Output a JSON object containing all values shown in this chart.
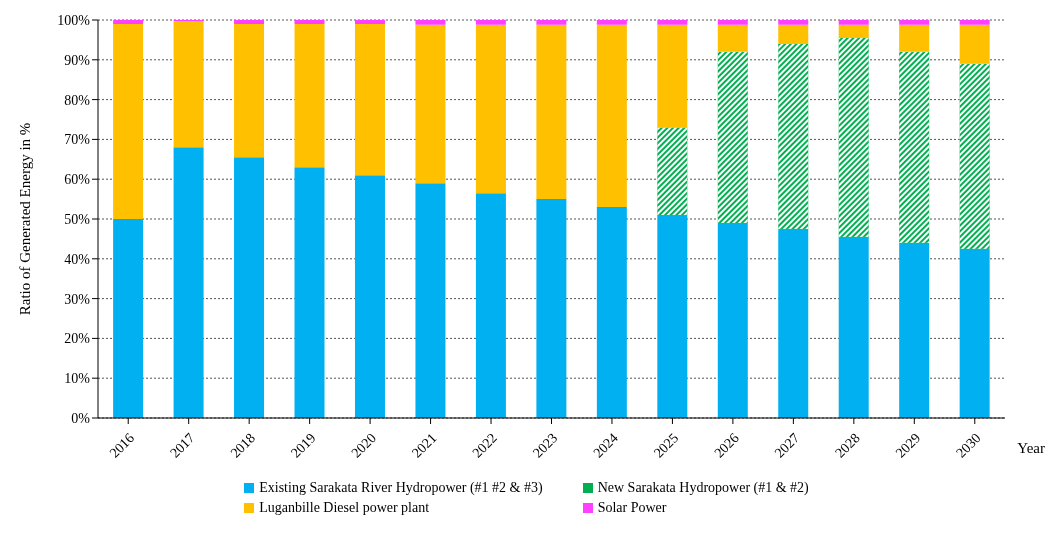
{
  "chart_data": {
    "type": "bar",
    "stacked": true,
    "xlabel": "Year",
    "ylabel": "Ratio of Generated Energy in %",
    "categories": [
      "2016",
      "2017",
      "2018",
      "2019",
      "2020",
      "2021",
      "2022",
      "2023",
      "2024",
      "2025",
      "2026",
      "2027",
      "2028",
      "2029",
      "2030"
    ],
    "series": [
      {
        "name": "Existing Sarakata River Hydropower (#1 #2 & #3)",
        "color": "#00b0f0",
        "values": [
          50,
          68,
          65.5,
          63,
          61,
          59,
          56.5,
          55,
          53,
          51,
          49,
          47.5,
          45.5,
          44,
          42.5
        ]
      },
      {
        "name": "New Sarakata Hydropower (#1 & #2)",
        "color": "#00b050",
        "values": [
          0,
          0,
          0,
          0,
          0,
          0,
          0,
          0,
          0,
          22,
          43,
          46.5,
          50,
          48,
          46.5
        ]
      },
      {
        "name": "Luganbille Diesel power plant",
        "color": "#ffc000",
        "values": [
          49,
          31.7,
          33.5,
          36,
          38,
          39.8,
          42.3,
          43.8,
          45.8,
          25.8,
          6.8,
          4.8,
          3.3,
          6.8,
          9.8
        ]
      },
      {
        "name": "Solar Power",
        "color": "#ff40ff",
        "values": [
          1,
          0.3,
          1,
          1,
          1,
          1.2,
          1.2,
          1.2,
          1.2,
          1.2,
          1.2,
          1.2,
          1.2,
          1.2,
          1.2
        ]
      }
    ],
    "ylim": [
      0,
      100
    ],
    "yticks": [
      {
        "value": 0,
        "label": "0%"
      },
      {
        "value": 10,
        "label": "10%"
      },
      {
        "value": 20,
        "label": "20%"
      },
      {
        "value": 30,
        "label": "30%"
      },
      {
        "value": 40,
        "label": "40%"
      },
      {
        "value": 50,
        "label": "50%"
      },
      {
        "value": 60,
        "label": "60%"
      },
      {
        "value": 70,
        "label": "70%"
      },
      {
        "value": 80,
        "label": "80%"
      },
      {
        "value": 90,
        "label": "90%"
      },
      {
        "value": 100,
        "label": "100%"
      }
    ],
    "grid": "y",
    "legend": "bottom",
    "marker": "square"
  }
}
